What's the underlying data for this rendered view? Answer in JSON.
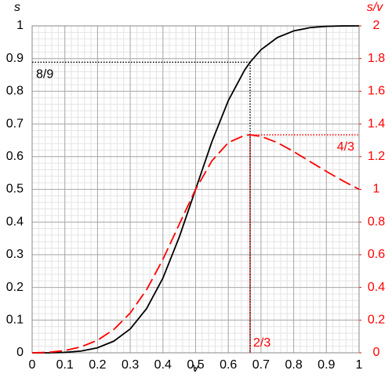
{
  "chart_data": {
    "type": "line",
    "x_label": "v",
    "y_label": "s",
    "y2_label": "s/v",
    "x": [
      0,
      0.05,
      0.1,
      0.15,
      0.2,
      0.25,
      0.3,
      0.35,
      0.4,
      0.45,
      0.5,
      0.55,
      0.6,
      0.65,
      0.6667,
      0.7,
      0.75,
      0.8,
      0.85,
      0.9,
      0.95,
      1
    ],
    "series": [
      {
        "name": "s",
        "color": "#000000",
        "dash": false,
        "values": [
          0,
          0.0001,
          0.0014,
          0.0055,
          0.0154,
          0.0357,
          0.073,
          0.135,
          0.2286,
          0.3539,
          0.5,
          0.6461,
          0.7714,
          0.865,
          0.8889,
          0.927,
          0.9643,
          0.9846,
          0.9945,
          0.9986,
          0.9999,
          1
        ]
      },
      {
        "name": "s/v",
        "color": "#ff0000",
        "dash": true,
        "axis": "y2",
        "values": [
          0,
          0.0029,
          0.0137,
          0.0365,
          0.0769,
          0.1429,
          0.2432,
          0.3857,
          0.5714,
          0.7864,
          1,
          1.1747,
          1.2857,
          1.3308,
          1.3333,
          1.3243,
          1.2857,
          1.2308,
          1.17,
          1.1096,
          1.0525,
          1
        ]
      }
    ],
    "annotations": [
      {
        "text": "8/9",
        "x": 0.6667,
        "y": 0.8889,
        "color": "#000000"
      },
      {
        "text": "4/3",
        "x": 0.6667,
        "y": 1.3333,
        "axis": "y2",
        "color": "#ff0000"
      },
      {
        "text": "2/3",
        "x": 0.6667,
        "y": 0,
        "color": "#ff0000"
      }
    ],
    "xlim": [
      0,
      1
    ],
    "ylim": [
      0,
      1
    ],
    "y2lim": [
      0,
      2
    ],
    "xticks": [
      0,
      0.1,
      0.2,
      0.3,
      0.4,
      0.5,
      0.6,
      0.7,
      0.8,
      0.9,
      1
    ],
    "yticks": [
      0,
      0.1,
      0.2,
      0.3,
      0.4,
      0.5,
      0.6,
      0.7,
      0.8,
      0.9,
      1
    ],
    "y2ticks": [
      0,
      0.2,
      0.4,
      0.6,
      0.8,
      1,
      1.2,
      1.4,
      1.6,
      1.8,
      2
    ],
    "y2_color": "#ff0000",
    "grid": true,
    "minor_grid_divisions": 5
  }
}
